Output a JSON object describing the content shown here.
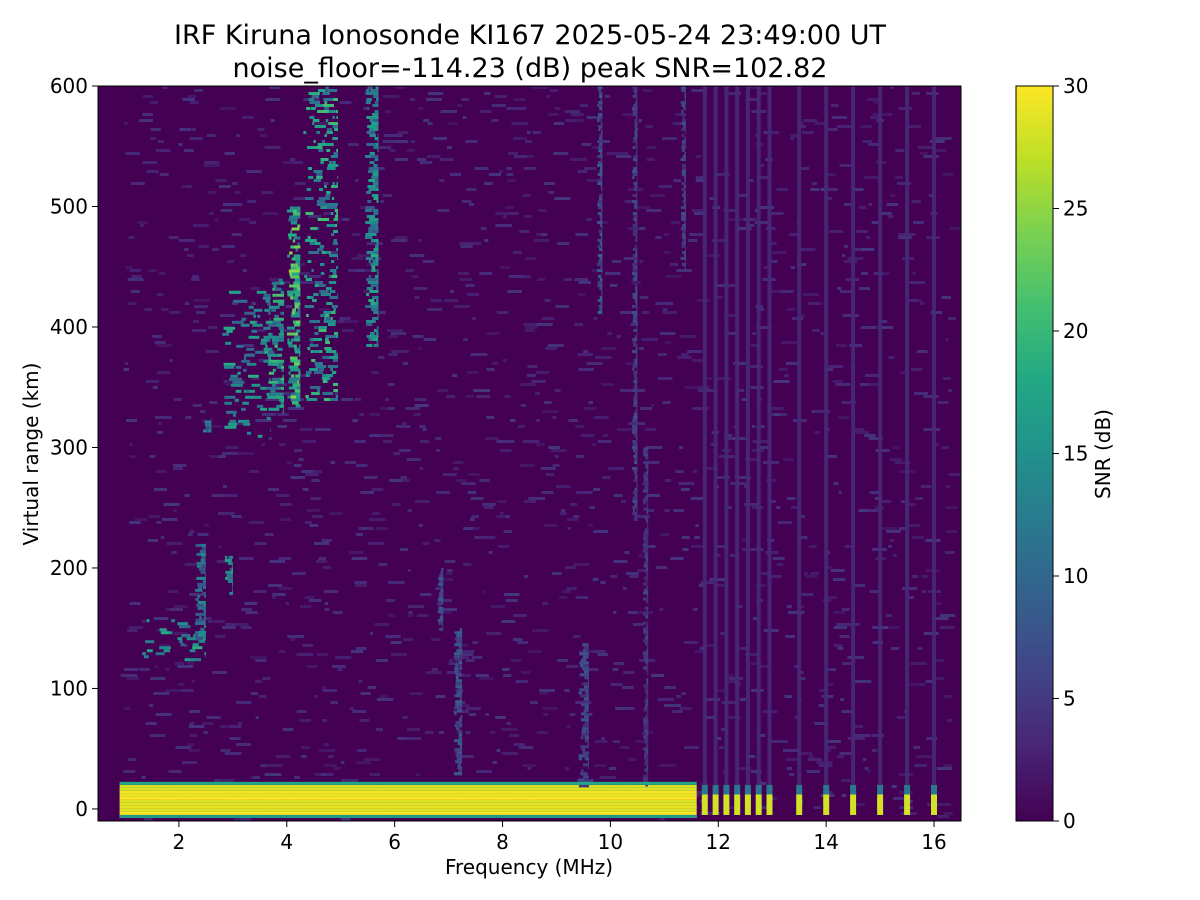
{
  "chart_data": {
    "type": "heatmap",
    "title": "IRF Kiruna Ionosonde KI167 2025-05-24 23:49:00  UT",
    "subtitle": "noise_floor=-114.23 (dB) peak SNR=102.82",
    "xlabel": "Frequency (MHz)",
    "ylabel": "Virtual range (km)",
    "xlim": [
      0.5,
      16.5
    ],
    "ylim": [
      -10,
      600
    ],
    "x_ticks": [
      2,
      4,
      6,
      8,
      10,
      12,
      14,
      16
    ],
    "y_ticks": [
      0,
      100,
      200,
      300,
      400,
      500,
      600
    ],
    "x_tick_labels": [
      "2",
      "4",
      "6",
      "8",
      "10",
      "12",
      "14",
      "16"
    ],
    "y_tick_labels": [
      "0",
      "100",
      "200",
      "300",
      "400",
      "500",
      "600"
    ],
    "frequency_coverage_mhz": [
      0.9,
      16.3
    ],
    "colorbar": {
      "label": "SNR (dB)",
      "range": [
        0,
        30
      ],
      "ticks": [
        0,
        5,
        10,
        15,
        20,
        25,
        30
      ],
      "tick_labels": [
        "0",
        "5",
        "10",
        "15",
        "20",
        "25",
        "30"
      ],
      "colormap": "viridis"
    },
    "features": [
      {
        "x_range": [
          0.9,
          11.6
        ],
        "y_range": [
          -5,
          20
        ],
        "snr": 30
      },
      {
        "x_range": [
          1.3,
          2.5
        ],
        "y_range": [
          125,
          160
        ],
        "snr": 18
      },
      {
        "x_range": [
          2.3,
          2.5
        ],
        "y_range": [
          140,
          220
        ],
        "snr": 14
      },
      {
        "x_range": [
          2.85,
          3.0
        ],
        "y_range": [
          180,
          210
        ],
        "snr": 18
      },
      {
        "x_range": [
          2.4,
          2.6
        ],
        "y_range": [
          315,
          325
        ],
        "snr": 14
      },
      {
        "x_range": [
          2.8,
          3.7
        ],
        "y_range": [
          310,
          430
        ],
        "snr": 18
      },
      {
        "x_range": [
          3.6,
          3.95
        ],
        "y_range": [
          330,
          440
        ],
        "snr": 20
      },
      {
        "x_range": [
          4.0,
          4.25
        ],
        "y_range": [
          335,
          500
        ],
        "snr": 24
      },
      {
        "x_range": [
          4.3,
          4.95
        ],
        "y_range": [
          340,
          600
        ],
        "snr": 20
      },
      {
        "x_range": [
          5.45,
          5.7
        ],
        "y_range": [
          385,
          600
        ],
        "snr": 18
      },
      {
        "x_range": [
          6.8,
          6.9
        ],
        "y_range": [
          150,
          200
        ],
        "snr": 9
      },
      {
        "x_range": [
          7.1,
          7.25
        ],
        "y_range": [
          30,
          150
        ],
        "snr": 9
      },
      {
        "x_range": [
          9.4,
          9.6
        ],
        "y_range": [
          20,
          140
        ],
        "snr": 8
      },
      {
        "x_range": [
          9.75,
          9.85
        ],
        "y_range": [
          410,
          600
        ],
        "snr": 9
      },
      {
        "x_range": [
          10.4,
          10.5
        ],
        "y_range": [
          240,
          600
        ],
        "snr": 7
      },
      {
        "x_range": [
          10.6,
          10.7
        ],
        "y_range": [
          20,
          300
        ],
        "snr": 6
      },
      {
        "x_range": [
          11.3,
          11.4
        ],
        "y_range": [
          450,
          600
        ],
        "snr": 7
      }
    ],
    "high_frequency_channels_mhz": [
      11.75,
      11.95,
      12.15,
      12.35,
      12.55,
      12.75,
      12.95,
      13.5,
      14.0,
      14.5,
      15.0,
      15.5,
      16.0
    ]
  }
}
